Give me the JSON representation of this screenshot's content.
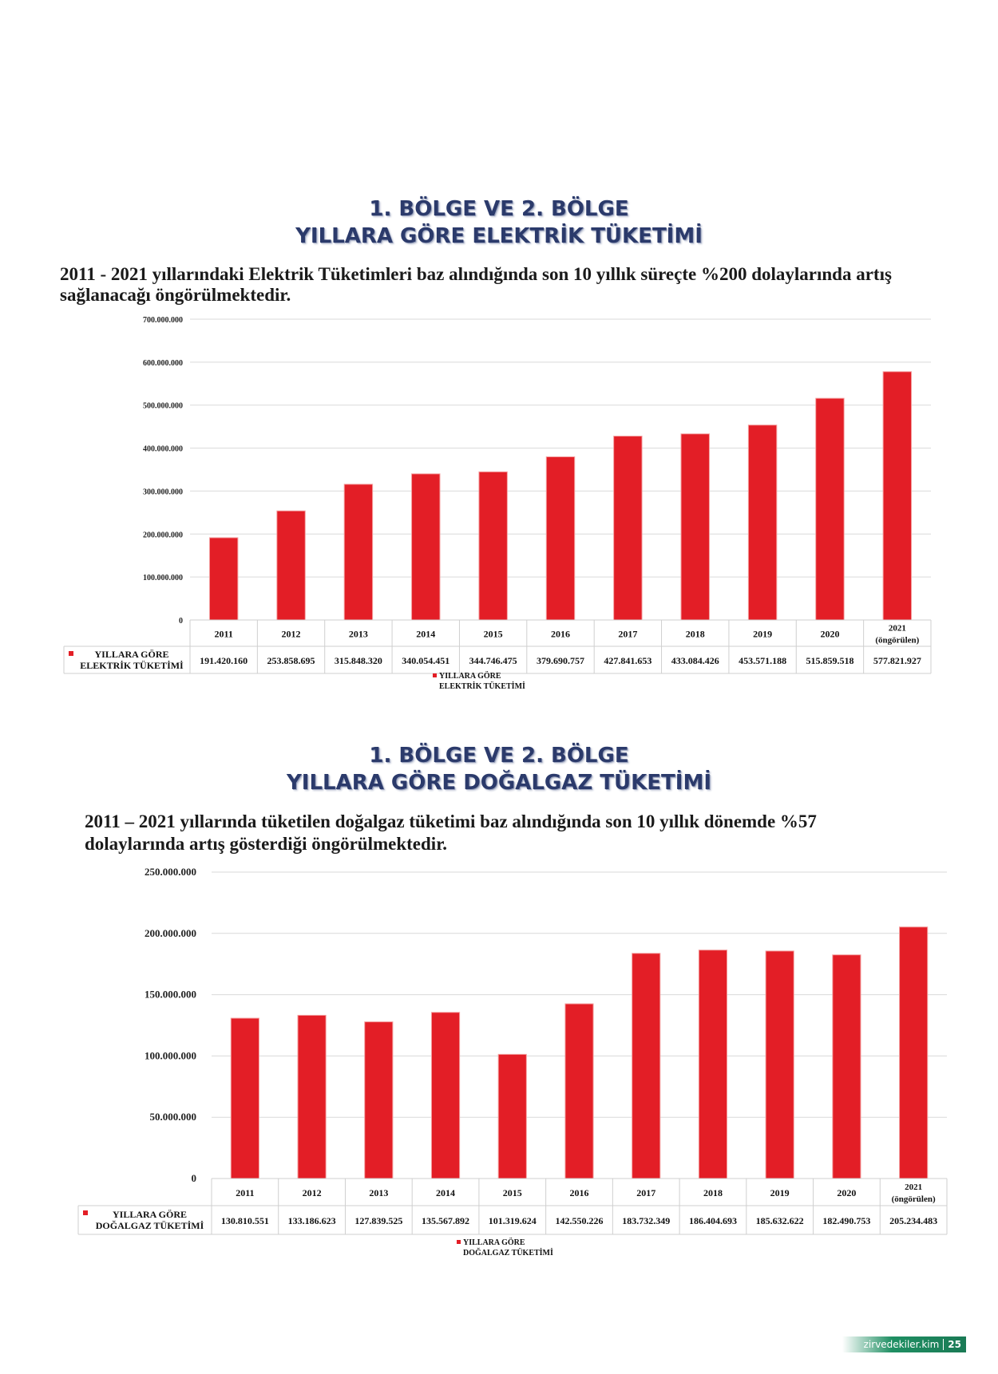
{
  "sections": [
    {
      "title_line1": "1. BÖLGE VE 2. BÖLGE",
      "title_line2": "YILLARA GÖRE ELEKTRİK TÜKETİMİ",
      "desc_line1": "2011 - 2021 yıllarındaki Elektrik Tüketimleri baz alındığında son 10 yıllık süreçte %200 dolaylarında artış",
      "desc_line2": "sağlanacağı öngörülmektedir."
    },
    {
      "title_line1": "1. BÖLGE VE 2. BÖLGE",
      "title_line2": "YILLARA GÖRE DOĞALGAZ TÜKETİMİ",
      "desc_line1": "2011 – 2021 yıllarında tüketilen doğalgaz tüketimi baz alındığında son 10 yıllık dönemde %57",
      "desc_line2": "dolaylarında artış gösterdiği öngörülmektedir."
    }
  ],
  "colors": {
    "bar": "#e31e26",
    "title": "#2b3a6b",
    "grid": "#d9d9d9",
    "footer": "#1f8f63"
  },
  "chart_data": [
    {
      "type": "bar",
      "categories": [
        "2011",
        "2012",
        "2013",
        "2014",
        "2015",
        "2016",
        "2017",
        "2018",
        "2019",
        "2020",
        "2021 (öngörülen)"
      ],
      "series": [
        {
          "name": "YILLARA GÖRE ELEKTRİK TÜKETİMİ",
          "values": [
            191420160,
            253858695,
            315848320,
            340054451,
            344746475,
            379690757,
            427841653,
            433084426,
            453571188,
            515859518,
            577821927
          ]
        }
      ],
      "value_labels": [
        "191.420.160",
        "253.858.695",
        "315.848.320",
        "340.054.451",
        "344.746.475",
        "379.690.757",
        "427.841.653",
        "433.084.426",
        "453.571.188",
        "515.859.518",
        "577.821.927"
      ],
      "yticks": [
        "0",
        "100.000.000",
        "200.000.000",
        "300.000.000",
        "400.000.000",
        "500.000.000",
        "600.000.000",
        "700.000.000"
      ],
      "ylim": [
        0,
        700000000
      ],
      "legend_line1": "YILLARA GÖRE",
      "legend_line2": "ELEKTRİK TÜKETİMİ",
      "legend": "bottom",
      "grid": true,
      "data_table": true
    },
    {
      "type": "bar",
      "categories": [
        "2011",
        "2012",
        "2013",
        "2014",
        "2015",
        "2016",
        "2017",
        "2018",
        "2019",
        "2020",
        "2021 (öngörülen)"
      ],
      "series": [
        {
          "name": "YILLARA GÖRE DOĞALGAZ TÜKETİMİ",
          "values": [
            130810551,
            133186623,
            127839525,
            135567892,
            101319624,
            142550226,
            183732349,
            186404693,
            185632622,
            182490753,
            205234483
          ]
        }
      ],
      "value_labels": [
        "130.810.551",
        "133.186.623",
        "127.839.525",
        "135.567.892",
        "101.319.624",
        "142.550.226",
        "183.732.349",
        "186.404.693",
        "185.632.622",
        "182.490.753",
        "205.234.483"
      ],
      "yticks": [
        "0",
        "50.000.000",
        "100.000.000",
        "150.000.000",
        "200.000.000",
        "250.000.000"
      ],
      "ylim": [
        0,
        250000000
      ],
      "legend_line1": "YILLARA GÖRE",
      "legend_line2": "DOĞALGAZ TÜKETİMİ",
      "legend": "bottom",
      "grid": true,
      "data_table": true
    }
  ],
  "footer": {
    "site": "zirvedekiler.kim",
    "page": "25"
  }
}
